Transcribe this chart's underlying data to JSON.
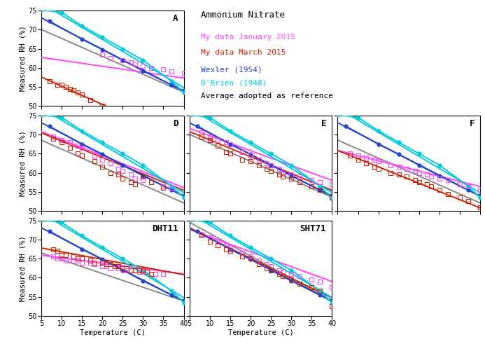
{
  "title": "Ammonium Nitrate",
  "xlim": [
    5,
    40
  ],
  "ylim": [
    50,
    75
  ],
  "xticks": [
    5,
    10,
    15,
    20,
    25,
    30,
    35,
    40
  ],
  "yticks": [
    50,
    55,
    60,
    65,
    70,
    75
  ],
  "color_jan": "#ff44ff",
  "color_mar": "#cc2200",
  "color_wexler": "#2244cc",
  "color_obrien": "#00ccdd",
  "color_avg": "#888888",
  "lw": 1.4,
  "ms": 4.5,
  "font": "monospace",
  "wexler_pts": [
    [
      7,
      72.2
    ],
    [
      15,
      67.5
    ],
    [
      20,
      64.8
    ],
    [
      25,
      62.0
    ],
    [
      30,
      59.2
    ],
    [
      37,
      55.5
    ],
    [
      40,
      54.0
    ]
  ],
  "obrien_pts": [
    [
      5,
      75.2
    ],
    [
      10,
      74.5
    ],
    [
      15,
      71.0
    ],
    [
      20,
      68.0
    ],
    [
      25,
      65.0
    ],
    [
      30,
      62.0
    ],
    [
      37,
      56.5
    ],
    [
      40,
      53.5
    ]
  ],
  "panels": {
    "A": {
      "avg_slope": -0.47,
      "avg_intercept": 72.4,
      "jan_slope": -0.155,
      "jan_intercept": 63.5,
      "jan_x0": 20,
      "jan_pts": [
        [
          20,
          63.5
        ],
        [
          22,
          62.5
        ],
        [
          25,
          62.0
        ],
        [
          27,
          61.5
        ],
        [
          28,
          61.0
        ],
        [
          30,
          60.5
        ],
        [
          32,
          60.0
        ],
        [
          35,
          59.5
        ],
        [
          37,
          59.0
        ],
        [
          40,
          58.5
        ]
      ],
      "mar_slope": -0.48,
      "mar_intercept": 60.0,
      "mar_pts": [
        [
          7,
          56.5
        ],
        [
          9,
          55.5
        ],
        [
          10,
          55.5
        ],
        [
          11,
          55.0
        ],
        [
          12,
          54.5
        ],
        [
          13,
          54.0
        ],
        [
          14,
          53.5
        ],
        [
          15,
          53.0
        ],
        [
          17,
          51.5
        ],
        [
          20,
          50.0
        ]
      ]
    },
    "D": {
      "avg_slope": -0.47,
      "avg_intercept": 70.9,
      "jan_slope": -0.42,
      "jan_intercept": 72.9,
      "jan_pts": [
        [
          8,
          69.5
        ],
        [
          10,
          68.5
        ],
        [
          12,
          68.0
        ],
        [
          14,
          67.0
        ],
        [
          15,
          66.5
        ],
        [
          18,
          64.5
        ],
        [
          20,
          63.5
        ],
        [
          22,
          62.5
        ],
        [
          24,
          61.0
        ],
        [
          25,
          60.5
        ],
        [
          27,
          59.5
        ],
        [
          28,
          58.5
        ],
        [
          30,
          58.0
        ],
        [
          32,
          57.5
        ],
        [
          35,
          56.5
        ],
        [
          37,
          56.0
        ]
      ],
      "mar_slope": -0.43,
      "mar_intercept": 72.6,
      "mar_pts": [
        [
          8,
          69.0
        ],
        [
          10,
          68.0
        ],
        [
          12,
          66.5
        ],
        [
          14,
          65.0
        ],
        [
          15,
          64.5
        ],
        [
          18,
          63.0
        ],
        [
          20,
          61.5
        ],
        [
          22,
          60.0
        ],
        [
          24,
          59.5
        ],
        [
          25,
          58.5
        ],
        [
          27,
          57.5
        ],
        [
          28,
          57.0
        ],
        [
          30,
          59.0
        ],
        [
          32,
          57.5
        ],
        [
          35,
          56.0
        ]
      ]
    },
    "E": {
      "avg_slope": -0.47,
      "avg_intercept": 72.4,
      "jan_slope": -0.39,
      "jan_intercept": 73.6,
      "jan_pts": [
        [
          8,
          70.5
        ],
        [
          10,
          69.5
        ],
        [
          12,
          68.5
        ],
        [
          14,
          68.0
        ],
        [
          15,
          67.5
        ],
        [
          18,
          65.5
        ],
        [
          20,
          64.5
        ],
        [
          22,
          63.5
        ],
        [
          24,
          62.5
        ],
        [
          25,
          62.0
        ],
        [
          27,
          61.0
        ],
        [
          28,
          60.0
        ],
        [
          30,
          59.5
        ],
        [
          32,
          59.0
        ],
        [
          35,
          58.0
        ],
        [
          37,
          57.5
        ],
        [
          40,
          57.0
        ]
      ],
      "mar_slope": -0.44,
      "mar_intercept": 73.0,
      "mar_pts": [
        [
          8,
          69.5
        ],
        [
          10,
          68.5
        ],
        [
          12,
          67.0
        ],
        [
          14,
          65.5
        ],
        [
          15,
          65.0
        ],
        [
          18,
          63.5
        ],
        [
          20,
          63.0
        ],
        [
          22,
          62.0
        ],
        [
          24,
          61.0
        ],
        [
          25,
          60.5
        ],
        [
          27,
          59.5
        ],
        [
          28,
          59.0
        ],
        [
          30,
          58.5
        ],
        [
          32,
          57.5
        ],
        [
          35,
          56.5
        ],
        [
          37,
          55.5
        ],
        [
          40,
          53.5
        ]
      ]
    },
    "F": {
      "avg_slope": -0.47,
      "avg_intercept": 70.9,
      "jan_slope": -0.27,
      "jan_intercept": 67.2,
      "jan_pts": [
        [
          8,
          65.0
        ],
        [
          10,
          64.5
        ],
        [
          12,
          64.0
        ],
        [
          14,
          63.5
        ],
        [
          15,
          63.0
        ],
        [
          18,
          62.0
        ],
        [
          20,
          61.5
        ],
        [
          22,
          61.0
        ],
        [
          24,
          60.5
        ],
        [
          25,
          60.0
        ],
        [
          27,
          59.5
        ],
        [
          28,
          59.0
        ],
        [
          30,
          58.5
        ],
        [
          32,
          58.0
        ],
        [
          35,
          57.0
        ],
        [
          37,
          56.5
        ],
        [
          40,
          55.5
        ]
      ],
      "mar_slope": -0.43,
      "mar_intercept": 68.0,
      "mar_pts": [
        [
          8,
          64.5
        ],
        [
          10,
          63.5
        ],
        [
          12,
          62.5
        ],
        [
          14,
          61.5
        ],
        [
          15,
          61.0
        ],
        [
          18,
          60.0
        ],
        [
          20,
          59.5
        ],
        [
          22,
          59.0
        ],
        [
          24,
          58.0
        ],
        [
          25,
          57.5
        ],
        [
          27,
          57.0
        ],
        [
          28,
          56.5
        ],
        [
          30,
          55.5
        ],
        [
          32,
          54.5
        ],
        [
          35,
          53.5
        ],
        [
          37,
          52.5
        ],
        [
          40,
          51.0
        ]
      ]
    },
    "DHT11": {
      "avg_slope": -0.36,
      "avg_intercept": 68.3,
      "jan_slope": -0.14,
      "jan_intercept": 66.6,
      "jan_pts": [
        [
          8,
          65.5
        ],
        [
          9,
          65.0
        ],
        [
          10,
          65.0
        ],
        [
          11,
          64.5
        ],
        [
          13,
          64.5
        ],
        [
          14,
          64.5
        ],
        [
          15,
          64.0
        ],
        [
          17,
          64.0
        ],
        [
          18,
          63.5
        ],
        [
          20,
          63.0
        ],
        [
          21,
          63.0
        ],
        [
          22,
          62.5
        ],
        [
          23,
          63.0
        ],
        [
          24,
          62.5
        ],
        [
          25,
          62.5
        ],
        [
          26,
          62.0
        ],
        [
          27,
          62.0
        ],
        [
          28,
          62.0
        ],
        [
          29,
          61.5
        ],
        [
          30,
          61.5
        ],
        [
          31,
          61.5
        ],
        [
          32,
          61.0
        ],
        [
          33,
          61.0
        ],
        [
          35,
          61.0
        ]
      ],
      "mar_slope": -0.2,
      "mar_intercept": 68.8,
      "mar_pts": [
        [
          8,
          67.5
        ],
        [
          9,
          67.0
        ],
        [
          10,
          66.0
        ],
        [
          11,
          66.0
        ],
        [
          13,
          65.5
        ],
        [
          14,
          65.0
        ],
        [
          15,
          65.0
        ],
        [
          17,
          64.5
        ],
        [
          18,
          64.0
        ],
        [
          20,
          64.0
        ],
        [
          21,
          63.5
        ],
        [
          22,
          63.5
        ],
        [
          23,
          63.0
        ],
        [
          24,
          63.0
        ],
        [
          25,
          62.5
        ],
        [
          26,
          62.5
        ],
        [
          27,
          62.0
        ],
        [
          28,
          62.0
        ],
        [
          29,
          62.0
        ],
        [
          30,
          62.0
        ],
        [
          31,
          61.5
        ],
        [
          32,
          61.0
        ]
      ]
    },
    "SHT71": {
      "avg_slope": -0.59,
      "avg_intercept": 77.5,
      "jan_slope": -0.39,
      "jan_intercept": 74.6,
      "jan_pts": [
        [
          8,
          71.5
        ],
        [
          10,
          70.5
        ],
        [
          12,
          69.5
        ],
        [
          14,
          68.5
        ],
        [
          15,
          68.0
        ],
        [
          18,
          66.5
        ],
        [
          20,
          65.5
        ],
        [
          22,
          64.5
        ],
        [
          24,
          63.5
        ],
        [
          25,
          63.0
        ],
        [
          27,
          62.0
        ],
        [
          28,
          61.5
        ],
        [
          30,
          61.0
        ],
        [
          32,
          60.5
        ],
        [
          35,
          59.5
        ],
        [
          37,
          59.0
        ],
        [
          40,
          57.5
        ]
      ],
      "mar_slope": -0.52,
      "mar_intercept": 75.5,
      "mar_pts": [
        [
          8,
          71.0
        ],
        [
          10,
          69.5
        ],
        [
          12,
          68.5
        ],
        [
          14,
          67.5
        ],
        [
          15,
          67.0
        ],
        [
          18,
          65.5
        ],
        [
          20,
          65.0
        ],
        [
          22,
          63.5
        ],
        [
          24,
          62.5
        ],
        [
          25,
          62.0
        ],
        [
          27,
          61.0
        ],
        [
          28,
          60.5
        ],
        [
          30,
          59.5
        ],
        [
          32,
          58.5
        ],
        [
          35,
          57.5
        ],
        [
          37,
          56.5
        ],
        [
          40,
          52.5
        ]
      ]
    }
  }
}
